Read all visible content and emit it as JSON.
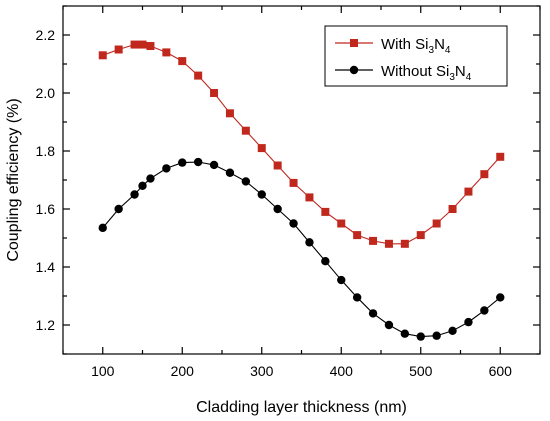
{
  "chart_data": {
    "type": "line",
    "xlabel": "Cladding layer thickness (nm)",
    "ylabel": "Coupling efficiency (%)",
    "xlim": [
      50,
      650
    ],
    "ylim": [
      1.1,
      2.3
    ],
    "xticks": [
      100,
      200,
      300,
      400,
      500,
      600
    ],
    "yticks": [
      1.2,
      1.4,
      1.6,
      1.8,
      2.0,
      2.2
    ],
    "xtick_labels": [
      "100",
      "200",
      "300",
      "400",
      "500",
      "600"
    ],
    "ytick_labels": [
      "1.2",
      "1.4",
      "1.6",
      "1.8",
      "2.0",
      "2.2"
    ],
    "legend_position": "top-right",
    "grid": false,
    "series": [
      {
        "name_prefix": "With Si",
        "name_sub1": "3",
        "name_mid": "N",
        "name_sub2": "4",
        "marker": "square",
        "color": "#c0281e",
        "line_color": "#c0281e",
        "x": [
          100,
          120,
          140,
          150,
          160,
          180,
          200,
          220,
          240,
          260,
          280,
          300,
          320,
          340,
          360,
          380,
          400,
          420,
          440,
          460,
          480,
          500,
          520,
          540,
          560,
          580,
          600
        ],
        "y": [
          2.13,
          2.15,
          2.167,
          2.167,
          2.162,
          2.14,
          2.11,
          2.06,
          2.0,
          1.93,
          1.87,
          1.81,
          1.75,
          1.69,
          1.64,
          1.59,
          1.55,
          1.51,
          1.49,
          1.48,
          1.48,
          1.51,
          1.55,
          1.6,
          1.66,
          1.72,
          1.78
        ]
      },
      {
        "name_prefix": "Without Si",
        "name_sub1": "3",
        "name_mid": "N",
        "name_sub2": "4",
        "marker": "circle",
        "color": "#000000",
        "line_color": "#000000",
        "x": [
          100,
          120,
          140,
          150,
          160,
          180,
          200,
          220,
          240,
          260,
          280,
          300,
          320,
          340,
          360,
          380,
          400,
          420,
          440,
          460,
          480,
          500,
          520,
          540,
          560,
          580,
          600
        ],
        "y": [
          1.535,
          1.6,
          1.65,
          1.68,
          1.705,
          1.74,
          1.76,
          1.762,
          1.752,
          1.725,
          1.695,
          1.65,
          1.6,
          1.55,
          1.485,
          1.42,
          1.355,
          1.295,
          1.24,
          1.2,
          1.17,
          1.16,
          1.163,
          1.18,
          1.21,
          1.25,
          1.295
        ]
      }
    ]
  }
}
